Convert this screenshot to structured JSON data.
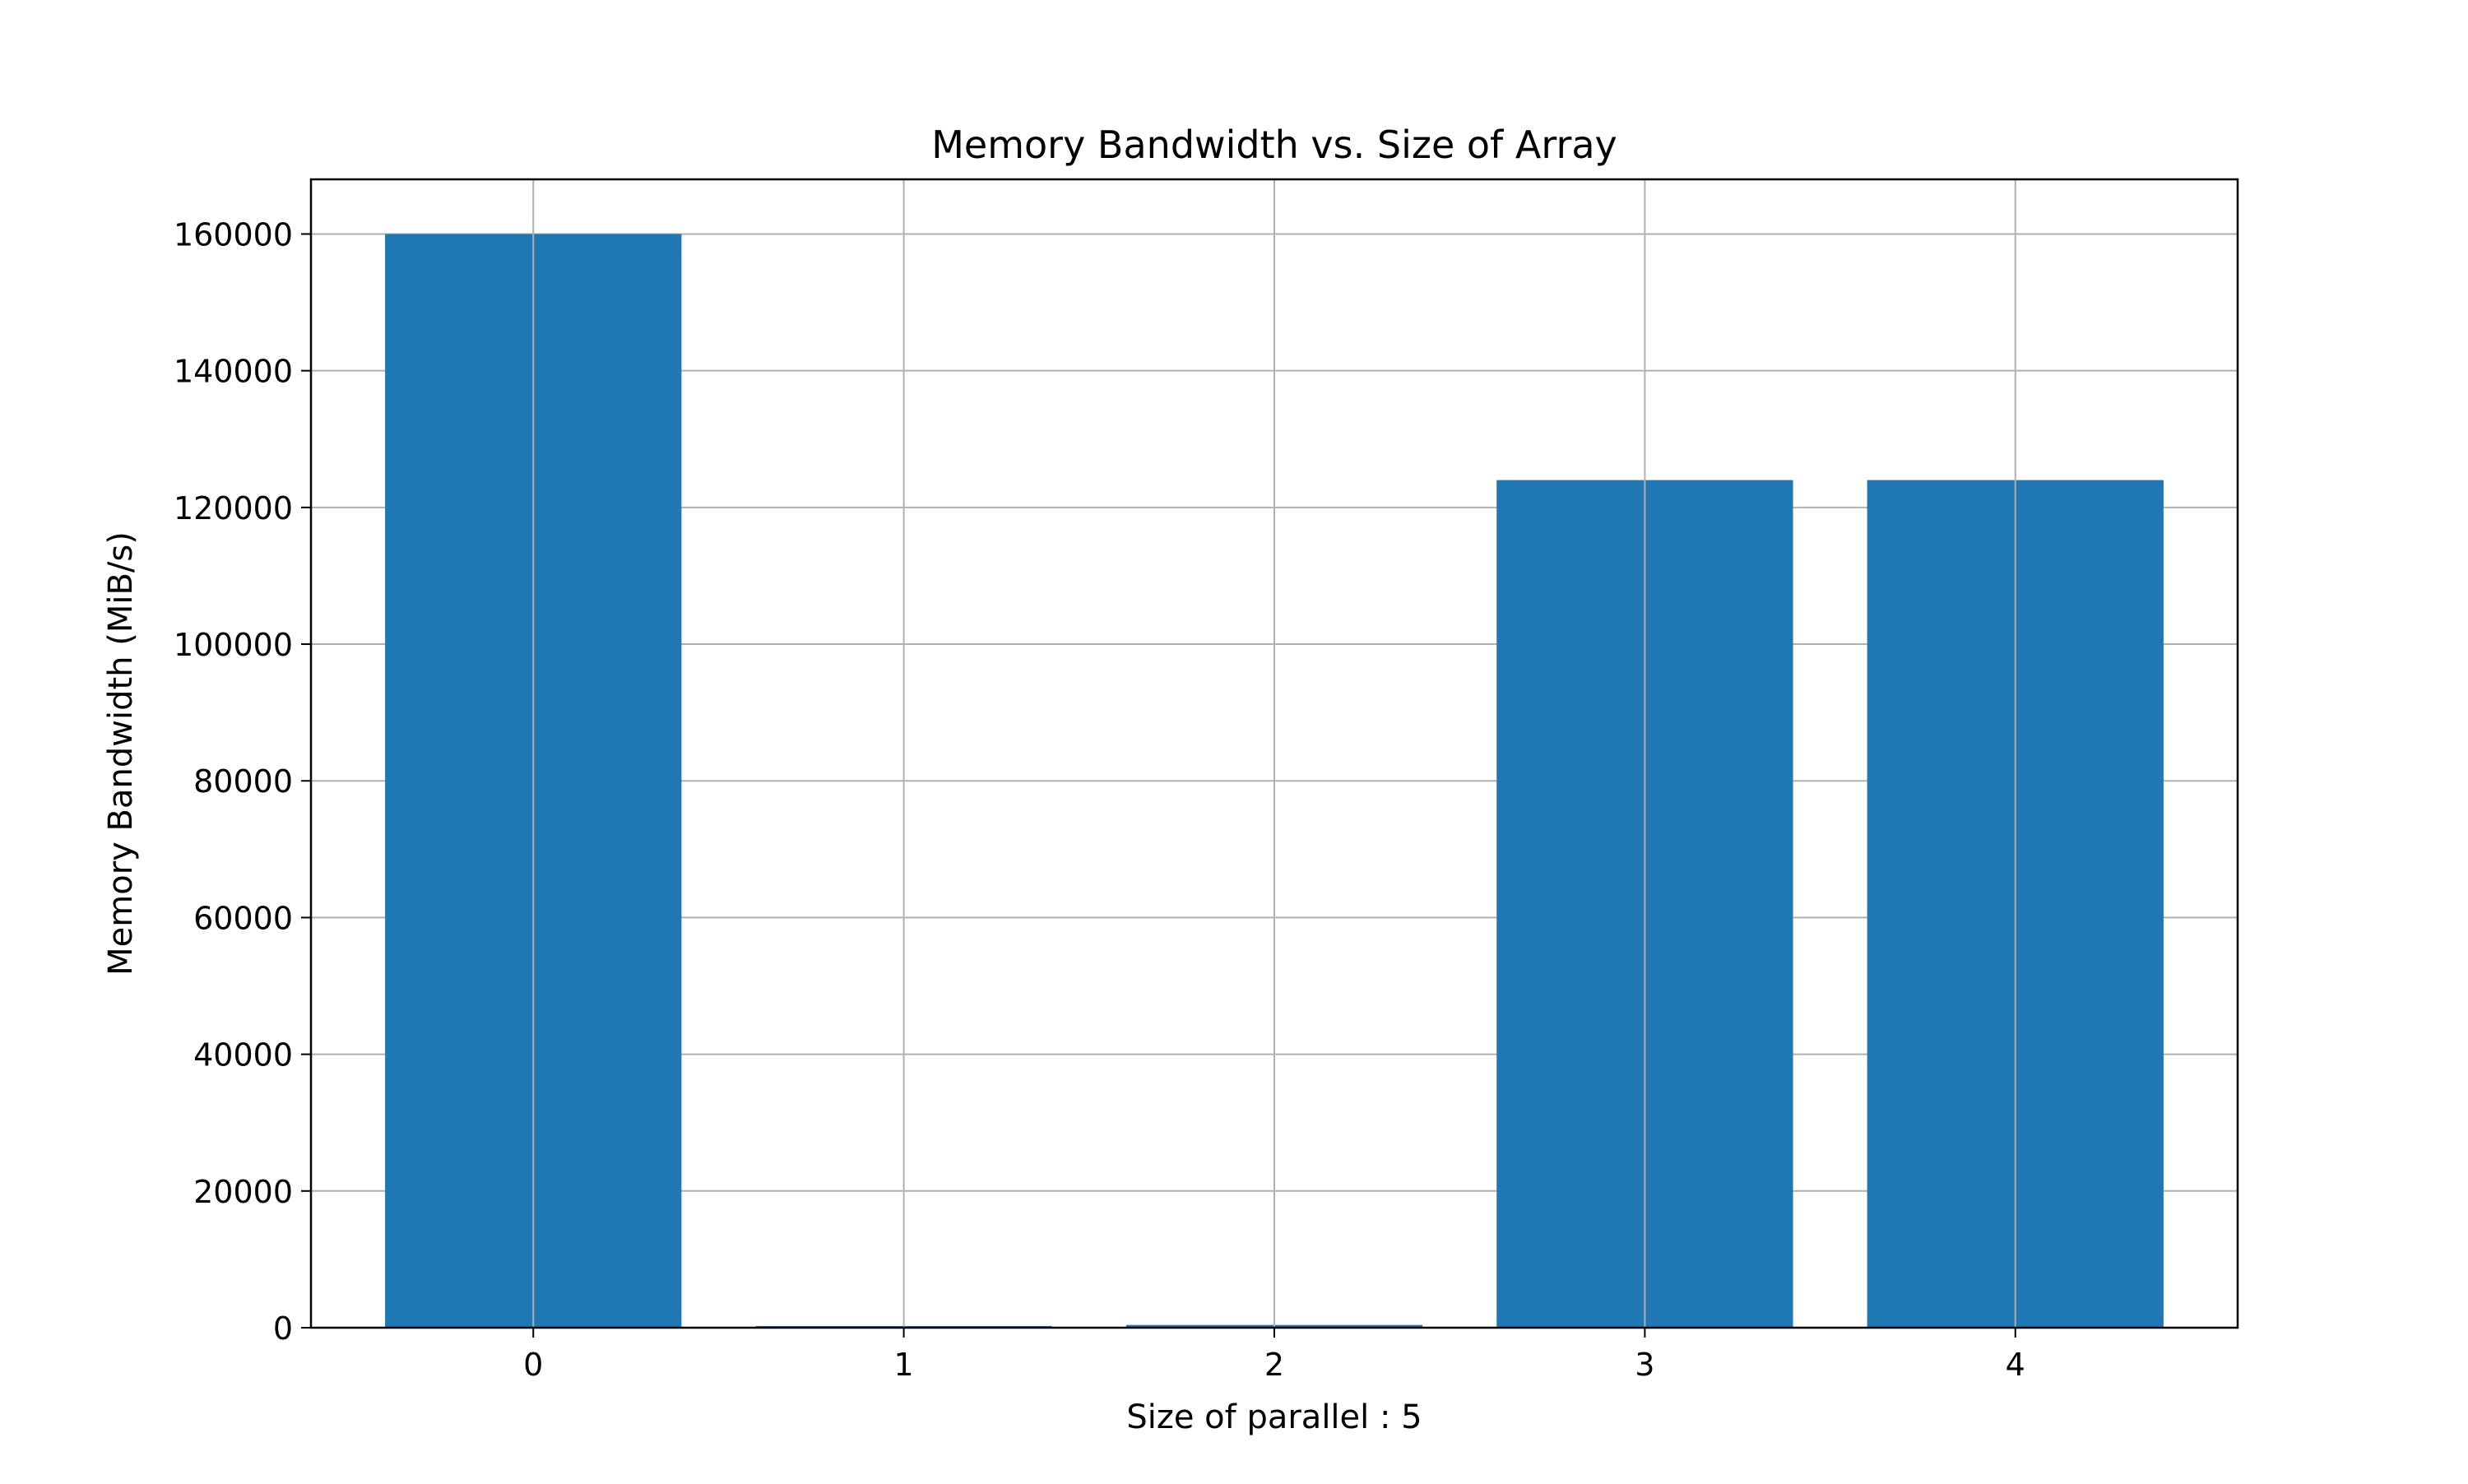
{
  "chart_data": {
    "type": "bar",
    "title": "Memory Bandwidth vs. Size of Array",
    "xlabel": "Size of parallel : 5",
    "ylabel": "Memory Bandwidth (MiB/s)",
    "categories": [
      "0",
      "1",
      "2",
      "3",
      "4"
    ],
    "values": [
      160000,
      250,
      400,
      124000,
      124000
    ],
    "ylim": [
      0,
      168000
    ],
    "yticks": [
      0,
      20000,
      40000,
      60000,
      80000,
      100000,
      120000,
      140000,
      160000
    ],
    "xticks": [
      0,
      1,
      2,
      3,
      4
    ],
    "grid": true,
    "colors": {
      "bar": "#1f77b4",
      "grid": "#b0b0b0",
      "axes": "#000000"
    }
  }
}
